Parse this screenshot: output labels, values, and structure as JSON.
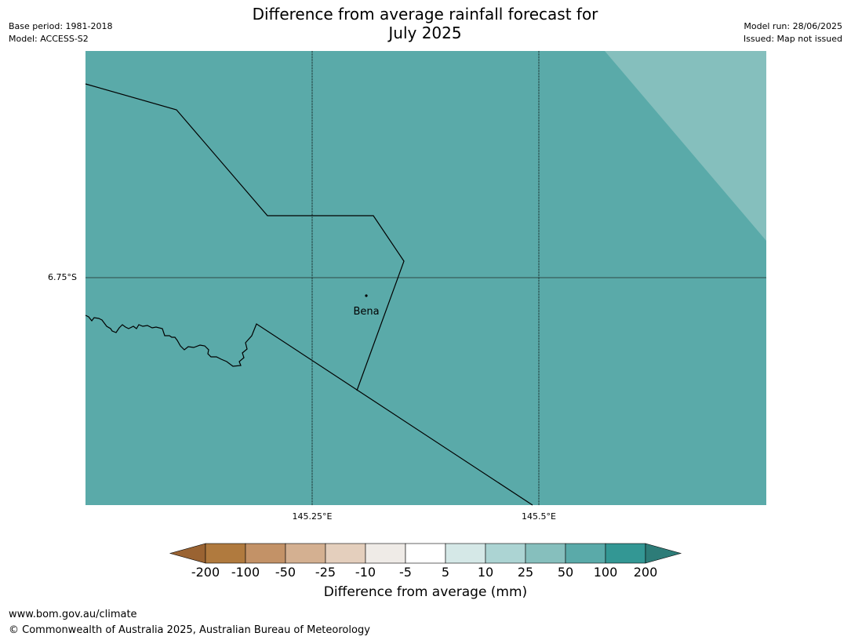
{
  "header": {
    "title_line1": "Difference from average rainfall forecast for",
    "title_line2": "July 2025",
    "base_period": "Base period: 1981-2018",
    "model": "Model: ACCESS-S2",
    "model_run": "Model run: 28/06/2025",
    "issued": "Issued: Map not issued"
  },
  "map": {
    "place_label": "Bena",
    "lat_label": "6.75°S",
    "lon_labels": [
      "145.25°E",
      "145.5°E"
    ],
    "colors": {
      "fill_100_200": "#5aaaa9",
      "fill_50_100": "#85bfbd",
      "boundary": "#000000"
    }
  },
  "colorbar": {
    "title": "Difference from average (mm)",
    "ticks": [
      "-200",
      "-100",
      "-50",
      "-25",
      "-10",
      "-5",
      "5",
      "10",
      "25",
      "50",
      "100",
      "200"
    ],
    "colors": [
      "#9a6332",
      "#b07a3e",
      "#c39267",
      "#d4b091",
      "#e4cfbd",
      "#efebe7",
      "#ffffff",
      "#d5e8e7",
      "#acd4d3",
      "#86bfbd",
      "#5aaaa9",
      "#339794",
      "#2d7c78"
    ]
  },
  "footer": {
    "url": "www.bom.gov.au/climate",
    "copyright": "© Commonwealth of Australia 2025, Australian Bureau of Meteorology"
  }
}
